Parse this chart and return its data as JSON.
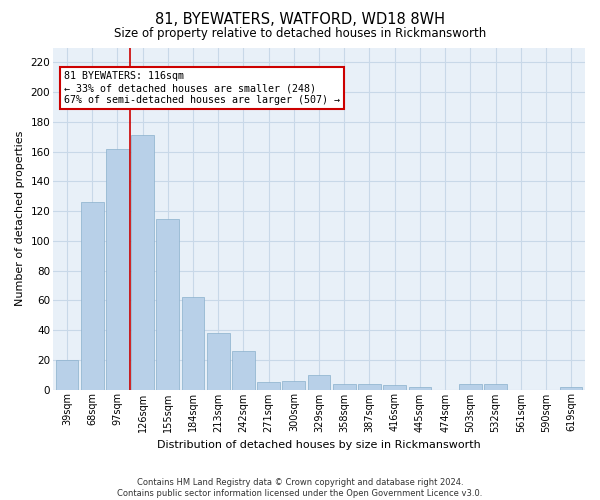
{
  "title": "81, BYEWATERS, WATFORD, WD18 8WH",
  "subtitle": "Size of property relative to detached houses in Rickmansworth",
  "xlabel": "Distribution of detached houses by size in Rickmansworth",
  "ylabel": "Number of detached properties",
  "footnote1": "Contains HM Land Registry data © Crown copyright and database right 2024.",
  "footnote2": "Contains public sector information licensed under the Open Government Licence v3.0.",
  "categories": [
    "39sqm",
    "68sqm",
    "97sqm",
    "126sqm",
    "155sqm",
    "184sqm",
    "213sqm",
    "242sqm",
    "271sqm",
    "300sqm",
    "329sqm",
    "358sqm",
    "387sqm",
    "416sqm",
    "445sqm",
    "474sqm",
    "503sqm",
    "532sqm",
    "561sqm",
    "590sqm",
    "619sqm"
  ],
  "values": [
    20,
    126,
    162,
    171,
    115,
    62,
    38,
    26,
    5,
    6,
    10,
    4,
    4,
    3,
    2,
    0,
    4,
    4,
    0,
    0,
    2
  ],
  "bar_color": "#b8d0e8",
  "bar_edge_color": "#8ab0cc",
  "grid_color": "#c8d8e8",
  "background_color": "#e8f0f8",
  "vline_color": "#cc0000",
  "vline_x": 2.5,
  "annotation_text": "81 BYEWATERS: 116sqm\n← 33% of detached houses are smaller (248)\n67% of semi-detached houses are larger (507) →",
  "annotation_box_color": "#ffffff",
  "annotation_box_edge": "#cc0000",
  "ylim": [
    0,
    230
  ],
  "yticks": [
    0,
    20,
    40,
    60,
    80,
    100,
    120,
    140,
    160,
    180,
    200,
    220
  ]
}
